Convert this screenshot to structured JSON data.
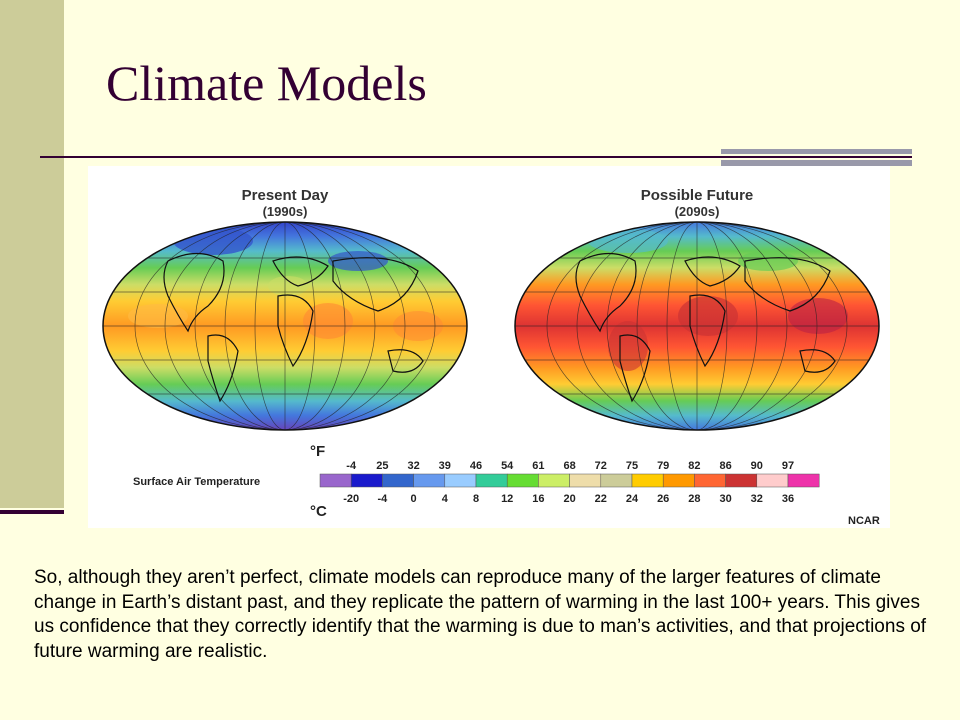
{
  "slide": {
    "title": "Climate Models",
    "caption": "So, although they aren’t perfect, climate models can reproduce many of the larger features of climate change in Earth’s distant past, and they replicate the pattern of warming in the last 100+ years. This gives us confidence that they correctly identify that the warming is due to man’s activities, and that projections of future warming are realistic."
  },
  "figure": {
    "maps": [
      {
        "title": "Present Day",
        "subtitle": "(1990s)"
      },
      {
        "title": "Possible Future",
        "subtitle": "(2090s)"
      }
    ],
    "legend": {
      "label": "Surface Air Temperature",
      "unit_f": "°F",
      "unit_c": "°C",
      "fahrenheit": [
        "-4",
        "25",
        "32",
        "39",
        "46",
        "54",
        "61",
        "68",
        "72",
        "75",
        "79",
        "82",
        "86",
        "90",
        "97"
      ],
      "celsius": [
        "-20",
        "-4",
        "0",
        "4",
        "8",
        "12",
        "16",
        "20",
        "22",
        "24",
        "26",
        "28",
        "30",
        "32",
        "36"
      ],
      "colors": [
        "#9966cc",
        "#1a1acc",
        "#3366cc",
        "#6699ee",
        "#99ccff",
        "#33cc99",
        "#66dd33",
        "#ccee66",
        "#eeddaa",
        "#cccc99",
        "#ffcc00",
        "#ff9900",
        "#ff6633",
        "#cc3333",
        "#ffcccc",
        "#ee33aa"
      ]
    },
    "credit": "NCAR"
  }
}
